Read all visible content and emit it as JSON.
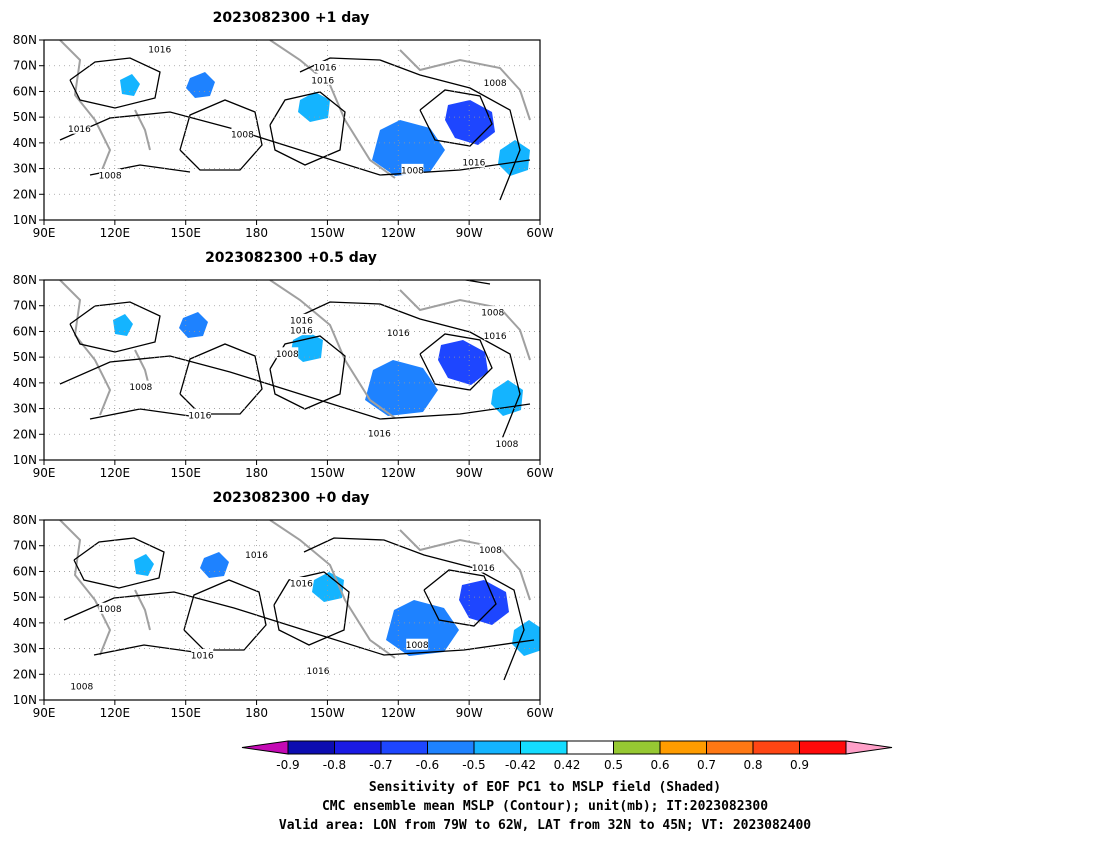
{
  "chart_data": {
    "type": "map-panels",
    "projection": "lon-lat",
    "lon_range": [
      90,
      300
    ],
    "lat_range": [
      10,
      80
    ],
    "lon_ticks": [
      "90E",
      "120E",
      "150E",
      "180",
      "150W",
      "120W",
      "90W",
      "60W"
    ],
    "lat_ticks": [
      "80N",
      "70N",
      "60N",
      "50N",
      "40N",
      "30N",
      "20N",
      "10N"
    ],
    "panels": [
      {
        "title": "2023082300  +1 day",
        "contour_labels": [
          {
            "text": "1016",
            "lon": 139,
            "lat": 76.5
          },
          {
            "text": "1016",
            "lon": 209,
            "lat": 69.5
          },
          {
            "text": "1016",
            "lon": 208,
            "lat": 64.5
          },
          {
            "text": "1008",
            "lon": 281,
            "lat": 63.5
          },
          {
            "text": "1016",
            "lon": 105,
            "lat": 45.5
          },
          {
            "text": "1008",
            "lon": 174,
            "lat": 43.5
          },
          {
            "text": "1016",
            "lon": 272,
            "lat": 32.5
          },
          {
            "text": "1008",
            "lon": 118,
            "lat": 27.5
          },
          {
            "text": "1008",
            "lon": 246,
            "lat": 29.5
          }
        ]
      },
      {
        "title": "2023082300  +0.5 day",
        "contour_labels": [
          {
            "text": "1008",
            "lon": 280,
            "lat": 67.5
          },
          {
            "text": "1016",
            "lon": 199,
            "lat": 64.5
          },
          {
            "text": "1016",
            "lon": 199,
            "lat": 60.5
          },
          {
            "text": "1016",
            "lon": 240,
            "lat": 59.5
          },
          {
            "text": "1016",
            "lon": 281,
            "lat": 58.5
          },
          {
            "text": "1008",
            "lon": 193,
            "lat": 51.5
          },
          {
            "text": "1008",
            "lon": 131,
            "lat": 38.5
          },
          {
            "text": "1016",
            "lon": 156,
            "lat": 27.5
          },
          {
            "text": "1016",
            "lon": 232,
            "lat": 20.5
          },
          {
            "text": "1008",
            "lon": 286,
            "lat": 16.5
          }
        ]
      },
      {
        "title": "2023082300  +0 day",
        "contour_labels": [
          {
            "text": "1008",
            "lon": 279,
            "lat": 68.5
          },
          {
            "text": "1016",
            "lon": 180,
            "lat": 66.5
          },
          {
            "text": "1016",
            "lon": 276,
            "lat": 61.5
          },
          {
            "text": "1016",
            "lon": 199,
            "lat": 55.5
          },
          {
            "text": "1008",
            "lon": 118,
            "lat": 45.5
          },
          {
            "text": "1008",
            "lon": 248,
            "lat": 31.5
          },
          {
            "text": "1016",
            "lon": 157,
            "lat": 27.5
          },
          {
            "text": "1016",
            "lon": 206,
            "lat": 21.5
          },
          {
            "text": "1008",
            "lon": 106,
            "lat": 15.5
          }
        ]
      }
    ],
    "colorbar": {
      "tick_labels": [
        "-0.9",
        "-0.8",
        "-0.7",
        "-0.6",
        "-0.5",
        "-0.42",
        "0.42",
        "0.5",
        "0.6",
        "0.7",
        "0.8",
        "0.9"
      ],
      "colors": [
        "#c40ab4",
        "#0c0cb0",
        "#1a1ae4",
        "#1e46ff",
        "#1e82ff",
        "#14b4ff",
        "#14dcff",
        "#ffffff",
        "#96c832",
        "#ff9c00",
        "#ff7814",
        "#ff4614",
        "#ff0a0a",
        "#ffa0c8"
      ]
    },
    "caption": [
      "Sensitivity of EOF PC1 to MSLP field (Shaded)",
      "CMC ensemble mean MSLP (Contour); unit(mb); IT:2023082300",
      "Valid area: LON from 79W to 62W, LAT from 32N to 45N; VT: 2023082400"
    ]
  }
}
